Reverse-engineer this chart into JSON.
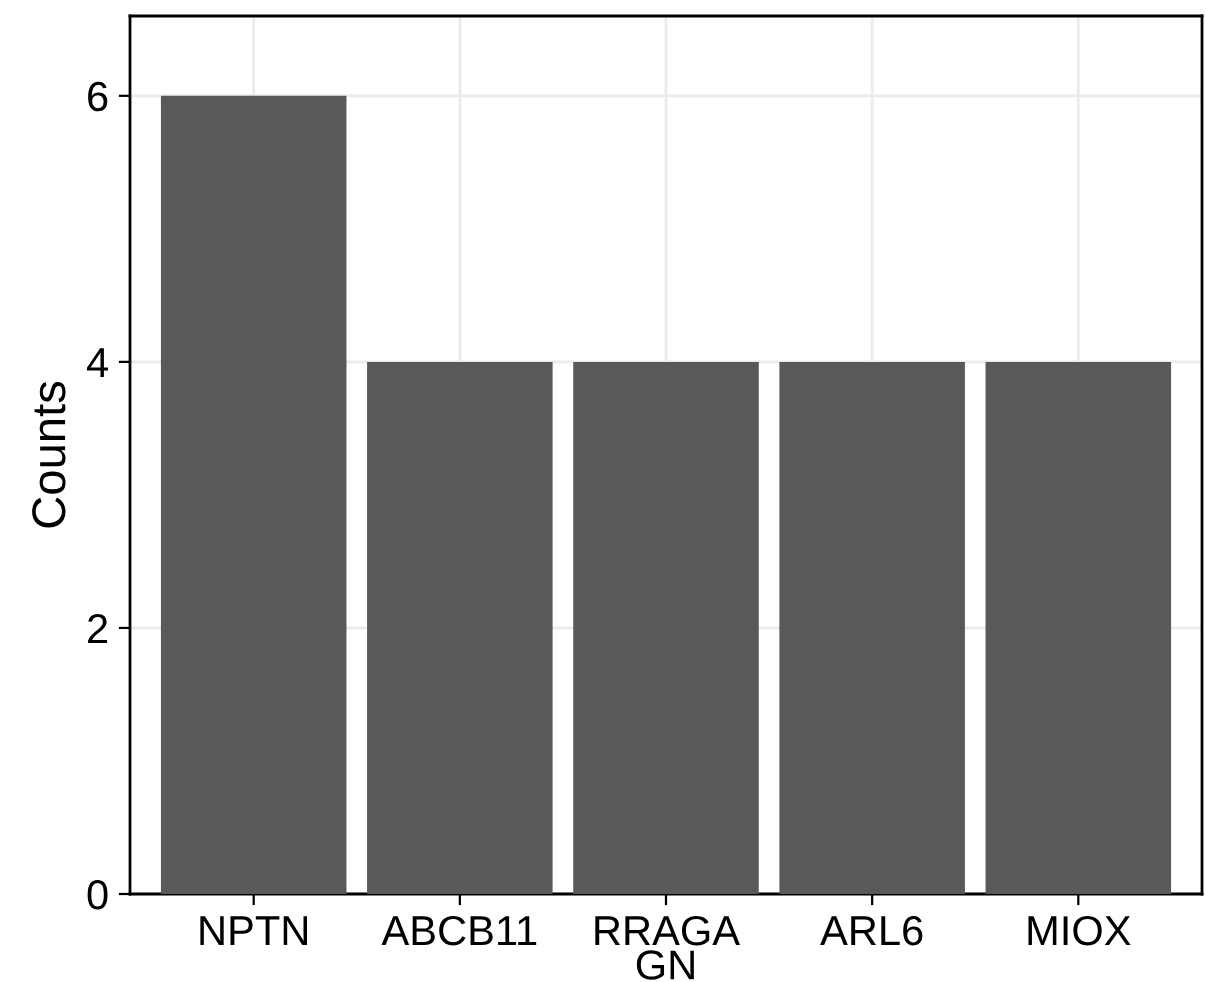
{
  "chart_data": {
    "type": "bar",
    "ylabel": "Counts",
    "categories": [
      "NPTN",
      "ABCB11",
      "RRAGA\nGN",
      "ARL6",
      "MIOX"
    ],
    "values": [
      6,
      4,
      4,
      4,
      4
    ],
    "color": "#595959",
    "ylim": [
      0,
      6.6
    ],
    "yticks": [
      0,
      2,
      4,
      6
    ],
    "grid": true
  }
}
